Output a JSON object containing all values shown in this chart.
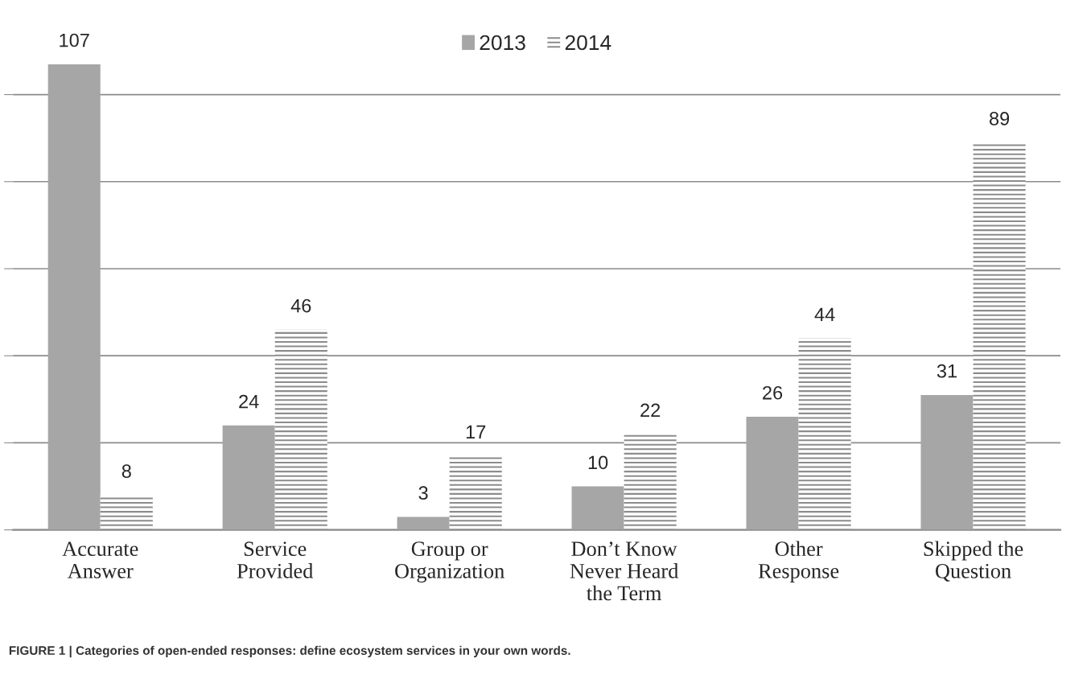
{
  "chart_data": {
    "type": "bar",
    "categories": [
      "Accurate\nAnswer",
      "Service\nProvided",
      "Group or\nOrganization",
      "Don’t Know\nNever Heard\nthe Term",
      "Other\nResponse",
      "Skipped the\nQuestion"
    ],
    "series": [
      {
        "name": "2013",
        "color": "#a6a6a6",
        "values": [
          107,
          24,
          3,
          10,
          26,
          31
        ]
      },
      {
        "name": "2014",
        "color": "#ffffff",
        "values": [
          8,
          46,
          17,
          22,
          44,
          89
        ]
      }
    ],
    "ylim": [
      0,
      107
    ],
    "yticks": [
      {
        "value": 0,
        "label": null
      },
      {
        "value": 20,
        "label": null
      },
      {
        "value": 40,
        "label": null
      },
      {
        "value": 60,
        "label": null
      },
      {
        "value": 80,
        "label": null
      },
      {
        "value": 100,
        "label": null
      }
    ],
    "grid": "y",
    "legend": "top",
    "data_labels": true,
    "annotations": [
      "FIGURE 1 | Categories of open-ended responses: define ecosystem services in your own words."
    ]
  }
}
